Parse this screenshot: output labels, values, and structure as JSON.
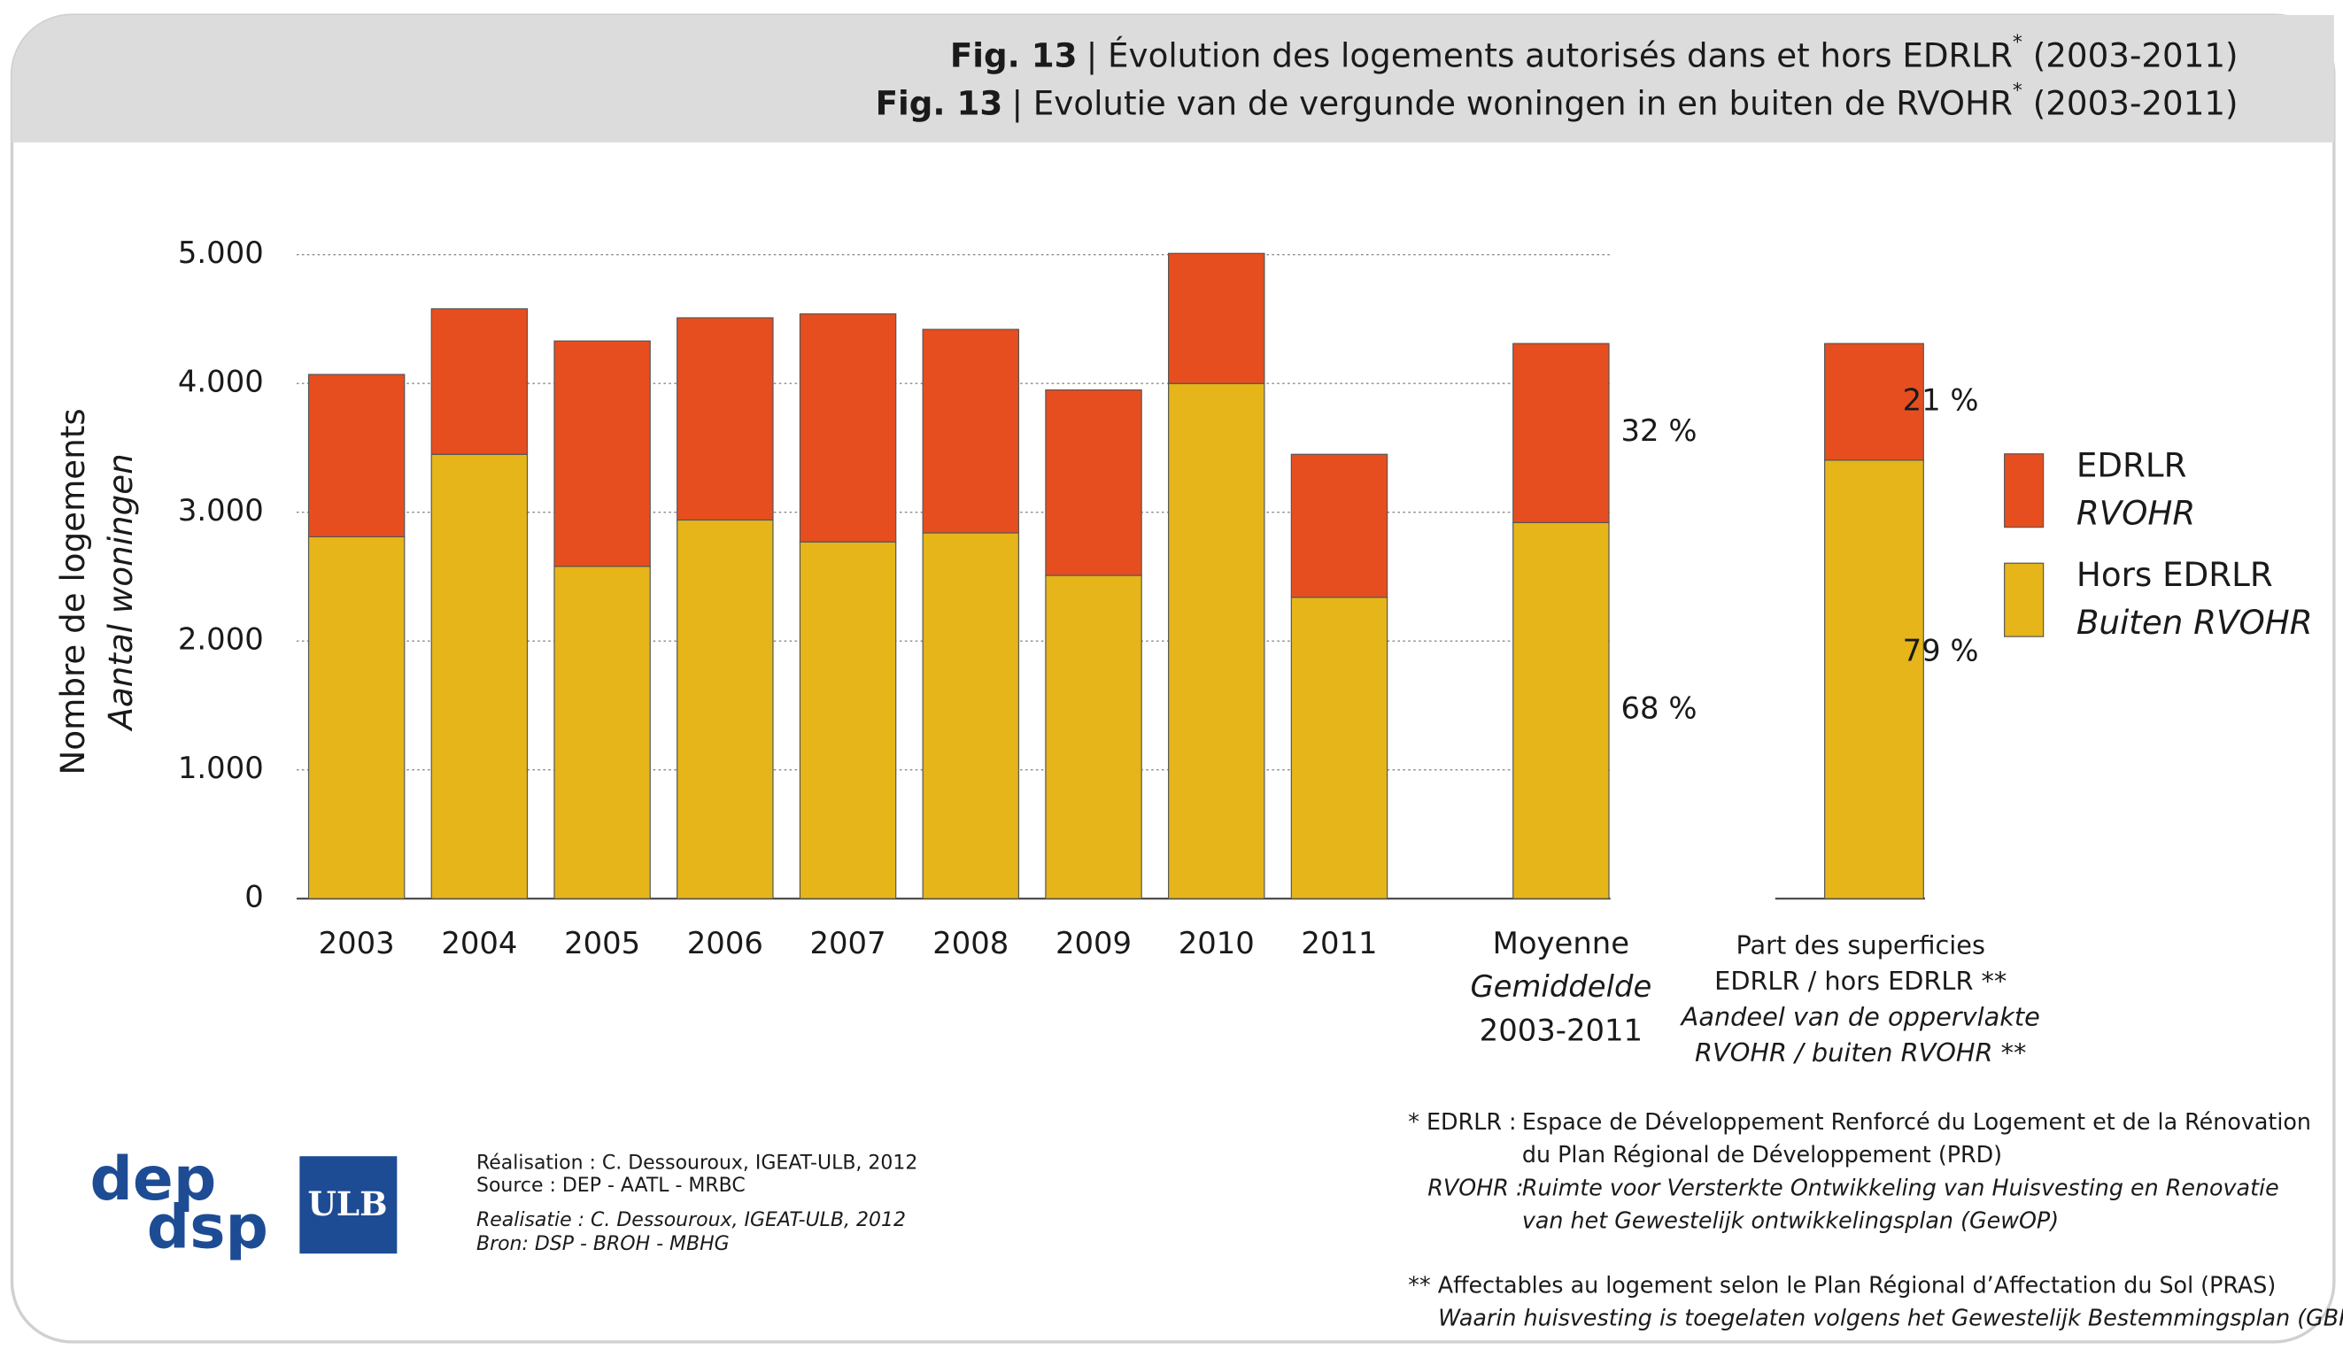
{
  "chart_data": {
    "type": "bar",
    "stacked": true,
    "title": [
      {
        "fig": "Fig. 13",
        "text": "| Évolution des logements autorisés dans et hors EDRLR",
        "sup": "*",
        "tail": " (2003-2011)"
      },
      {
        "fig": "Fig. 13",
        "text": "| Evolutie van de vergunde woningen in en buiten de RVOHR",
        "sup": "*",
        "tail": " (2003-2011)"
      }
    ],
    "y_label": [
      "Nombre de logements",
      "Aantal woningen"
    ],
    "categories": [
      "2003",
      "2004",
      "2005",
      "2006",
      "2007",
      "2008",
      "2009",
      "2010",
      "2011"
    ],
    "series": [
      {
        "name": "Hors EDRLR",
        "name_nl": "Buiten RVOHR",
        "color": "#e5b51a",
        "values": [
          2810,
          3450,
          2580,
          2940,
          2770,
          2840,
          2510,
          4000,
          2340
        ]
      },
      {
        "name": "EDRLR",
        "name_nl": "RVOHR",
        "color": "#e64e1f",
        "values": [
          1260,
          1130,
          1750,
          1570,
          1770,
          1580,
          1440,
          1010,
          1110
        ]
      }
    ],
    "average": {
      "label": [
        "Moyenne",
        "Gemiddelde",
        "2003-2011"
      ],
      "values": [
        2920,
        1390
      ],
      "percent": [
        {
          "value": 68,
          "label": "68 %"
        },
        {
          "value": 32,
          "label": "32 %"
        }
      ]
    },
    "share": {
      "label": [
        "Part des superficies",
        "EDRLR / hors EDRLR **",
        "Aandeel van de oppervlakte",
        "RVOHR / buiten RVOHR **"
      ],
      "values": [
        79,
        21
      ],
      "value_labels": [
        "79 %",
        "21 %"
      ]
    },
    "ylim": [
      0,
      5000
    ],
    "yticks": [
      0,
      {
        "value": 1000,
        "label": "1.000"
      },
      {
        "value": 2000,
        "label": "2.000"
      },
      {
        "value": 3000,
        "label": "3.000"
      },
      {
        "value": 4000,
        "label": "4.000"
      },
      {
        "value": 5000,
        "label": "5.000"
      }
    ],
    "grid": true,
    "legend": "right"
  },
  "credits": [
    "Réalisation : C. Dessouroux, IGEAT-ULB, 2012",
    "Source : DEP - AATL - MRBC",
    "Realisatie : C. Dessouroux, IGEAT-ULB, 2012",
    "Bron: DSP -  BROH - MBHG"
  ],
  "notes": {
    "edrlr_key": "* EDRLR :",
    "edrlr": [
      "Espace de Développement Renforcé du Logement et de la Rénovation",
      "du Plan Régional de Développement (PRD)"
    ],
    "rvohr_key": "RVOHR :",
    "rvohr": [
      "Ruimte voor Versterkte Ontwikkeling van Huisvesting en Renovatie",
      "van het Gewestelijk ontwikkelingsplan (GewOP)"
    ],
    "pras": "** Affectables au logement selon le Plan Régional d’Affectation du Sol (PRAS)",
    "gbp": "Waarin huisvesting is toegelaten volgens het Gewestelijk Bestemmingsplan (GBP)"
  },
  "logos": [
    "dep",
    "dsp",
    "ULB"
  ]
}
